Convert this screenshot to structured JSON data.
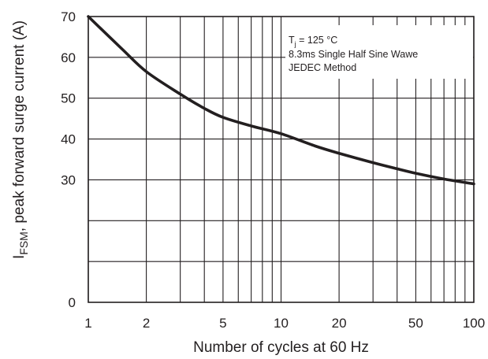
{
  "chart_data": {
    "type": "line",
    "x_scale": "log",
    "xlim": [
      1,
      100
    ],
    "ylim": [
      0,
      70
    ],
    "grid": true,
    "xlabel": "Number of cycles at 60 Hz",
    "ylabel": {
      "symbol_main": "I",
      "symbol_sub": "FSM",
      "rest": ", peak forward surge current (A)"
    },
    "x_ticks": [
      {
        "value": 1,
        "label": "1"
      },
      {
        "value": 2,
        "label": "2"
      },
      {
        "value": 5,
        "label": "5"
      },
      {
        "value": 10,
        "label": "10"
      },
      {
        "value": 20,
        "label": "20"
      },
      {
        "value": 50,
        "label": "50"
      },
      {
        "value": 100,
        "label": "100"
      }
    ],
    "y_ticks": [
      {
        "value": 0,
        "label": "0"
      },
      {
        "value": 10,
        "label": ""
      },
      {
        "value": 20,
        "label": ""
      },
      {
        "value": 30,
        "label": "30"
      },
      {
        "value": 40,
        "label": "40"
      },
      {
        "value": 50,
        "label": "50"
      },
      {
        "value": 60,
        "label": "60"
      },
      {
        "value": 70,
        "label": "70"
      }
    ],
    "x_minor_grid": [
      3,
      4,
      6,
      7,
      8,
      9,
      30,
      40,
      60,
      70,
      80,
      90
    ],
    "annotation": {
      "line1_main": "T",
      "line1_sub": "j",
      "line1_rest": " = 125 °C",
      "line2": "8.3ms Single Half Sine Wawe",
      "line3": "JEDEC Method"
    },
    "series": [
      {
        "x": [
          1,
          1.5,
          2,
          3,
          4,
          5,
          7,
          10,
          15,
          20,
          30,
          40,
          50,
          70,
          100
        ],
        "y": [
          70,
          62,
          56.5,
          51,
          47.5,
          45.3,
          43.2,
          41.3,
          38.3,
          36.5,
          34.2,
          32.7,
          31.6,
          30.2,
          29
        ]
      }
    ],
    "colors": {
      "line": "#231f20",
      "grid": "#231f20",
      "background": "#ffffff"
    }
  }
}
